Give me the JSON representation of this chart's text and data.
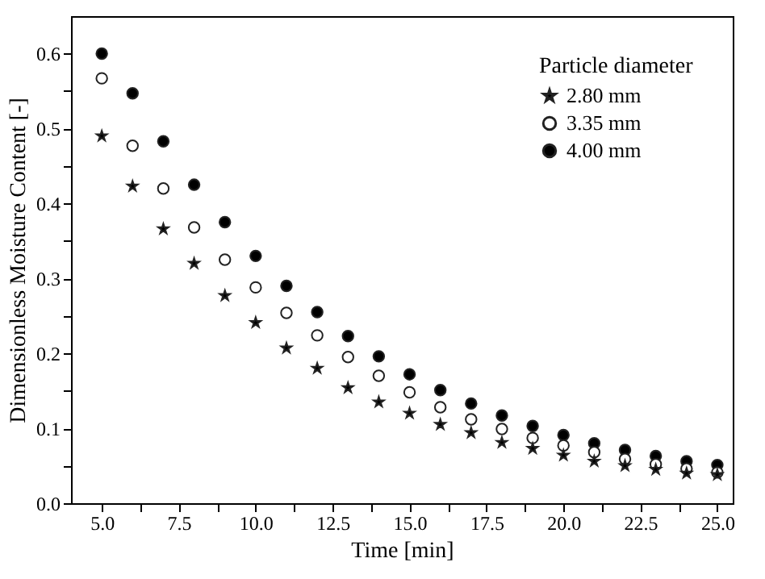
{
  "chart_data": {
    "type": "scatter",
    "xlabel": "Time [min]",
    "ylabel": "Dimensionless Moisture Content [-]",
    "legend_title": "Particle diameter",
    "legend": "top right",
    "grid": false,
    "x": [
      5,
      6,
      7,
      8,
      9,
      10,
      11,
      12,
      13,
      14,
      15,
      16,
      17,
      18,
      19,
      20,
      21,
      22,
      23,
      24,
      25
    ],
    "series": [
      {
        "name": "2.80 mm",
        "color": "#000000",
        "marker": "star",
        "values": [
          0.49,
          0.423,
          0.366,
          0.32,
          0.277,
          0.241,
          0.207,
          0.18,
          0.154,
          0.135,
          0.12,
          0.105,
          0.094,
          0.081,
          0.073,
          0.064,
          0.056,
          0.05,
          0.045,
          0.04,
          0.038
        ]
      },
      {
        "name": "3.35 mm",
        "color": "#ffffff",
        "marker": "circle",
        "values": [
          0.567,
          0.477,
          0.42,
          0.368,
          0.325,
          0.288,
          0.254,
          0.224,
          0.195,
          0.17,
          0.148,
          0.128,
          0.112,
          0.099,
          0.087,
          0.077,
          0.068,
          0.059,
          0.052,
          0.046,
          0.041
        ]
      },
      {
        "name": "4.00 mm",
        "color": "#000000",
        "marker": "circle",
        "values": [
          0.6,
          0.547,
          0.483,
          0.425,
          0.375,
          0.33,
          0.29,
          0.255,
          0.223,
          0.196,
          0.172,
          0.151,
          0.133,
          0.117,
          0.103,
          0.091,
          0.08,
          0.071,
          0.063,
          0.056,
          0.051
        ]
      }
    ],
    "xlim": [
      4,
      25.5
    ],
    "xticks": [
      {
        "value": 5,
        "label": "5.0"
      },
      {
        "value": 6.25,
        "label": null
      },
      {
        "value": 7.5,
        "label": "7.5"
      },
      {
        "value": 8.75,
        "label": null
      },
      {
        "value": 10,
        "label": "10.0"
      },
      {
        "value": 11.25,
        "label": null
      },
      {
        "value": 12.5,
        "label": "12.5"
      },
      {
        "value": 13.75,
        "label": null
      },
      {
        "value": 15,
        "label": "15.0"
      },
      {
        "value": 16.25,
        "label": null
      },
      {
        "value": 17.5,
        "label": "17.5"
      },
      {
        "value": 18.75,
        "label": null
      },
      {
        "value": 20,
        "label": "20.0"
      },
      {
        "value": 21.25,
        "label": null
      },
      {
        "value": 22.5,
        "label": "22.5"
      },
      {
        "value": 23.75,
        "label": null
      },
      {
        "value": 25,
        "label": "25.0"
      }
    ],
    "ylim": [
      0,
      0.65
    ],
    "yticks": [
      {
        "value": 0,
        "label": "0.0"
      },
      {
        "value": 0.05,
        "label": null
      },
      0.1,
      {
        "value": 0.15,
        "label": null
      },
      0.2,
      {
        "value": 0.25,
        "label": null
      },
      0.3,
      {
        "value": 0.35,
        "label": null
      },
      0.4,
      {
        "value": 0.45,
        "label": null
      },
      0.5,
      {
        "value": 0.55,
        "label": null
      },
      0.6
    ]
  }
}
